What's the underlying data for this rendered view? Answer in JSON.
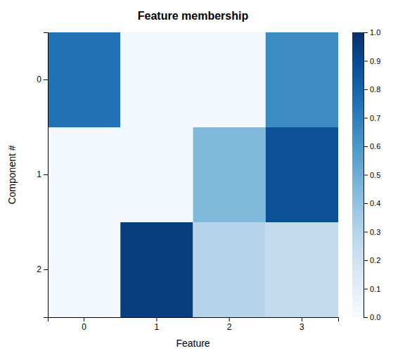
{
  "chart_data": {
    "type": "heatmap",
    "title": "Feature membership",
    "xlabel": "Feature",
    "ylabel": "Component #",
    "x": [
      "0",
      "1",
      "2",
      "3"
    ],
    "y": [
      "0",
      "1",
      "2"
    ],
    "values": [
      [
        0.75,
        0.02,
        0.02,
        0.65
      ],
      [
        0.02,
        0.02,
        0.45,
        0.88
      ],
      [
        0.02,
        0.95,
        0.3,
        0.25
      ]
    ],
    "color": "Blues",
    "zlim": [
      0.0,
      1.0
    ],
    "zticks": [
      {
        "value": 0.0,
        "label": "0.0"
      },
      0.1,
      0.2,
      0.3,
      0.4,
      0.5,
      0.6,
      0.7,
      0.8,
      0.9,
      {
        "value": 1.0,
        "label": "1.0"
      }
    ]
  }
}
